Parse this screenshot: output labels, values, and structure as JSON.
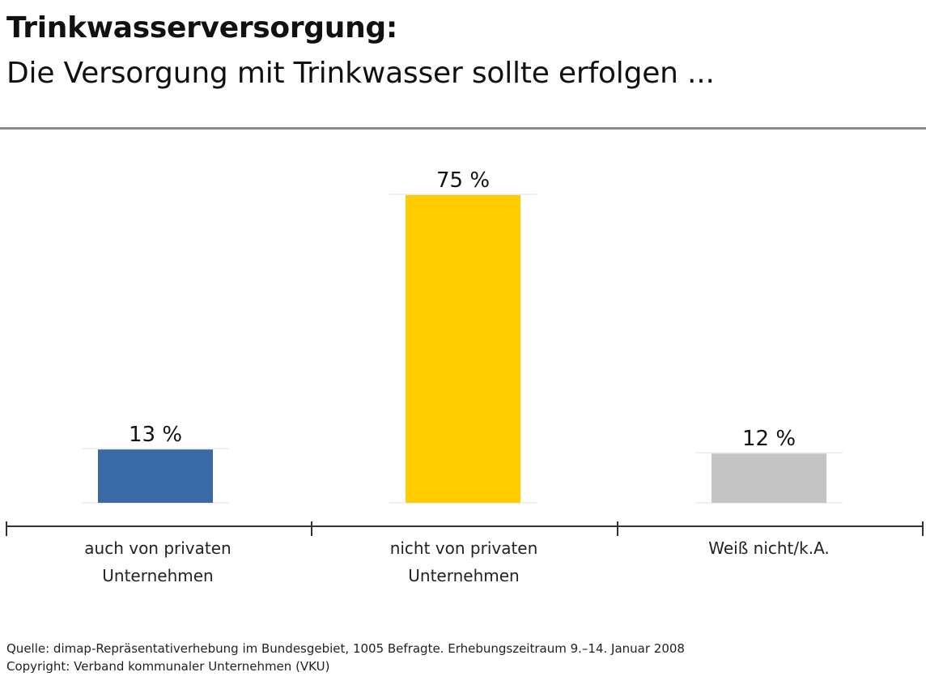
{
  "header": {
    "title": "Trinkwasserversorgung:",
    "subtitle": "Die Versorgung mit Trinkwasser sollte erfolgen ..."
  },
  "chart_data": {
    "type": "bar",
    "title": "Trinkwasserversorgung:",
    "subtitle": "Die Versorgung mit Trinkwasser sollte erfolgen ...",
    "categories": [
      "auch von privaten\nUnternehmen",
      "nicht von privaten\nUnternehmen",
      "Weiß nicht/k.A."
    ],
    "values": [
      13,
      75,
      12
    ],
    "value_labels": [
      "13 %",
      "75 %",
      "12 %"
    ],
    "colors": [
      "#3a6aa5",
      "#ffcc00",
      "#c4c4c4"
    ],
    "unit": "%",
    "ylim": [
      0,
      75
    ],
    "grid": false,
    "legend": "none",
    "xlabel": "",
    "ylabel": ""
  },
  "footer": {
    "source": "Quelle: dimap-Repräsentativerhebung im Bundesgebiet, 1005 Befragte. Erhebungszeitraum 9.–14. Januar 2008",
    "copyright": "Copyright: Verband kommunaler Unternehmen (VKU)"
  }
}
